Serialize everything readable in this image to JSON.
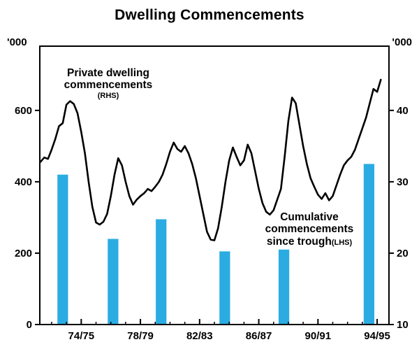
{
  "title": "Dwelling Commencements",
  "annotations": {
    "line_label_1": "Private dwelling",
    "line_label_2": "commencements",
    "line_label_scale": "(RHS)",
    "bar_label_1": "Cumulative",
    "bar_label_2": "commencements",
    "bar_label_3": "since trough",
    "bar_label_scale": "(LHS)"
  },
  "colors": {
    "bar": "#2aace2",
    "line": "#000000",
    "frame": "#000000",
    "background": "#ffffff"
  },
  "chart_data": {
    "type": "line+bar",
    "title": "Dwelling Commencements",
    "x_axis": {
      "min": 1972.2,
      "max": 1995.8,
      "tick_years": [
        1975,
        1979,
        1983,
        1987,
        1991,
        1995
      ],
      "tick_labels": [
        "74/75",
        "78/79",
        "82/83",
        "86/87",
        "90/91",
        "94/95"
      ],
      "minor_tick_start": 1973,
      "minor_tick_end": 1995
    },
    "left_axis": {
      "unit": "'000",
      "min": 0,
      "max": 780,
      "ticks": [
        0,
        200,
        400,
        600
      ],
      "series": "Cumulative commencements since trough (LHS)"
    },
    "right_axis": {
      "unit": "'000",
      "min": 10,
      "max": 49,
      "ticks": [
        10,
        20,
        30,
        40
      ],
      "series": "Private dwelling commencements (RHS)"
    },
    "bar_series": {
      "name": "Cumulative commencements since trough",
      "axis": "left",
      "x": [
        1973.75,
        1977.15,
        1980.4,
        1984.7,
        1988.7,
        1994.45
      ],
      "values": [
        420,
        240,
        295,
        205,
        210,
        450
      ],
      "bar_width_years": 0.72
    },
    "line_series": {
      "name": "Private dwelling commencements",
      "axis": "right",
      "x_start": 1972.25,
      "x_step": 0.25,
      "values": [
        32.8,
        33.4,
        33.2,
        34.5,
        36.0,
        37.8,
        38.2,
        40.8,
        41.3,
        40.9,
        39.6,
        37.0,
        34.0,
        30.0,
        26.5,
        24.3,
        24.0,
        24.4,
        25.5,
        28.0,
        31.0,
        33.3,
        32.3,
        30.0,
        28.0,
        26.8,
        27.5,
        28.0,
        28.4,
        29.0,
        28.7,
        29.3,
        30.0,
        31.0,
        32.5,
        34.2,
        35.5,
        34.6,
        34.2,
        35.0,
        34.0,
        32.5,
        30.5,
        28.0,
        25.5,
        23.0,
        21.9,
        21.8,
        23.5,
        26.5,
        30.0,
        33.0,
        34.8,
        33.5,
        32.3,
        33.0,
        35.2,
        34.0,
        31.5,
        29.0,
        27.0,
        25.8,
        25.4,
        26.0,
        27.5,
        29.0,
        33.5,
        38.5,
        41.8,
        41.0,
        38.0,
        35.0,
        32.5,
        30.5,
        29.3,
        28.2,
        27.6,
        28.4,
        27.4,
        28.0,
        29.5,
        31.0,
        32.3,
        33.0,
        33.5,
        34.5,
        36.0,
        37.5,
        39.0,
        41.0,
        43.0,
        42.6,
        44.3
      ]
    }
  }
}
